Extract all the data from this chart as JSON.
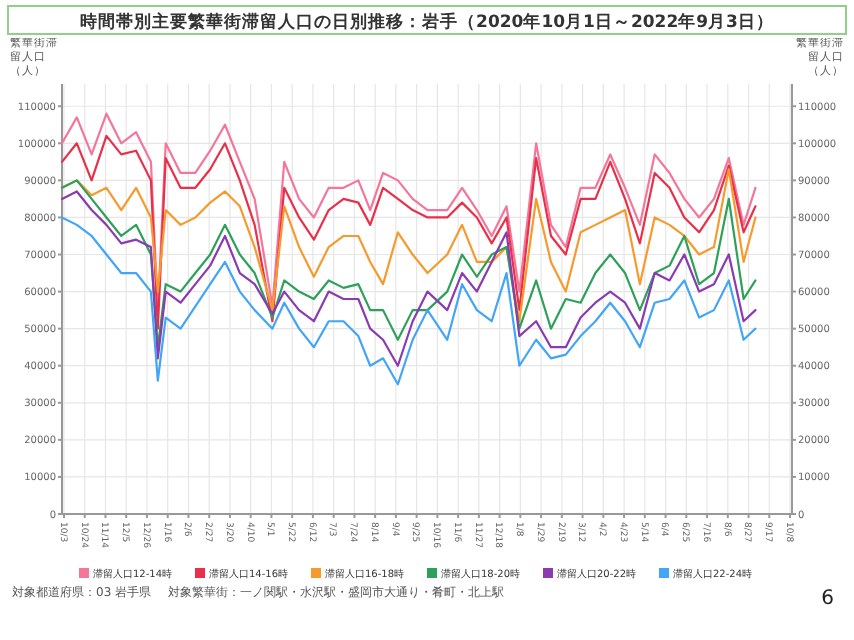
{
  "chart_data": {
    "type": "line",
    "title": "時間帯別主要繁華街滞留人口の日別推移：岩手（2020年10月1日～2022年9月3日）",
    "ylabel": "繁華街滞留人口（人）",
    "y2label": "繁華街滞留人口（人）",
    "x": [
      "2020-10-01",
      "2020-10-16",
      "2020-10-31",
      "2020-11-15",
      "2020-11-30",
      "2020-12-15",
      "2020-12-30",
      "2021-01-06",
      "2021-01-14",
      "2021-01-29",
      "2021-02-13",
      "2021-02-28",
      "2021-03-15",
      "2021-03-30",
      "2021-04-14",
      "2021-05-02",
      "2021-05-14",
      "2021-05-29",
      "2021-06-13",
      "2021-06-28",
      "2021-07-13",
      "2021-07-28",
      "2021-08-09",
      "2021-08-22",
      "2021-09-06",
      "2021-09-21",
      "2021-10-06",
      "2021-10-26",
      "2021-11-10",
      "2021-11-25",
      "2021-12-10",
      "2021-12-25",
      "2022-01-07",
      "2022-01-24",
      "2022-02-08",
      "2022-02-23",
      "2022-03-10",
      "2022-03-25",
      "2022-04-09",
      "2022-04-24",
      "2022-05-09",
      "2022-05-24",
      "2022-06-08",
      "2022-06-23",
      "2022-07-08",
      "2022-07-23",
      "2022-08-07",
      "2022-08-22",
      "2022-09-03"
    ],
    "series": [
      {
        "name": "滞留人口12-14時",
        "color": "#f4769a",
        "values": [
          100000,
          107000,
          97000,
          108000,
          100000,
          103000,
          95000,
          55000,
          100000,
          92000,
          92000,
          98000,
          105000,
          95000,
          85000,
          56000,
          95000,
          85000,
          80000,
          88000,
          88000,
          90000,
          82000,
          92000,
          90000,
          85000,
          82000,
          82000,
          88000,
          82000,
          75000,
          83000,
          60000,
          100000,
          78000,
          72000,
          88000,
          88000,
          97000,
          88000,
          78000,
          97000,
          92000,
          85000,
          80000,
          85000,
          96000,
          78000,
          88000
        ]
      },
      {
        "name": "滞留人口14-16時",
        "color": "#e8304a",
        "values": [
          95000,
          100000,
          90000,
          102000,
          97000,
          98000,
          90000,
          50000,
          96000,
          88000,
          88000,
          93000,
          100000,
          90000,
          78000,
          52000,
          88000,
          80000,
          74000,
          82000,
          85000,
          84000,
          78000,
          88000,
          85000,
          82000,
          80000,
          80000,
          84000,
          80000,
          73000,
          80000,
          55000,
          96000,
          75000,
          70000,
          85000,
          85000,
          95000,
          85000,
          73000,
          92000,
          88000,
          80000,
          76000,
          82000,
          94000,
          76000,
          83000
        ]
      },
      {
        "name": "滞留人口16-18時",
        "color": "#f79a2e",
        "values": [
          88000,
          90000,
          86000,
          88000,
          82000,
          88000,
          80000,
          60000,
          82000,
          78000,
          80000,
          84000,
          87000,
          83000,
          72000,
          55000,
          83000,
          72000,
          64000,
          72000,
          75000,
          75000,
          68000,
          62000,
          76000,
          70000,
          65000,
          70000,
          78000,
          68000,
          68000,
          72000,
          52000,
          85000,
          68000,
          60000,
          76000,
          78000,
          80000,
          82000,
          62000,
          80000,
          78000,
          75000,
          70000,
          72000,
          93000,
          68000,
          80000
        ]
      },
      {
        "name": "滞留人口18-20時",
        "color": "#2ea05a",
        "values": [
          88000,
          90000,
          85000,
          80000,
          75000,
          78000,
          70000,
          45000,
          62000,
          60000,
          65000,
          70000,
          78000,
          70000,
          65000,
          53000,
          63000,
          60000,
          58000,
          63000,
          61000,
          62000,
          55000,
          55000,
          47000,
          55000,
          55000,
          60000,
          70000,
          64000,
          70000,
          72000,
          50000,
          63000,
          50000,
          58000,
          57000,
          65000,
          70000,
          65000,
          55000,
          65000,
          67000,
          75000,
          62000,
          65000,
          85000,
          58000,
          63000
        ]
      },
      {
        "name": "滞留人口20-22時",
        "color": "#8a3bb0",
        "values": [
          85000,
          87000,
          82000,
          78000,
          73000,
          74000,
          72000,
          42000,
          60000,
          57000,
          62000,
          67000,
          75000,
          65000,
          62000,
          54000,
          60000,
          55000,
          52000,
          60000,
          58000,
          58000,
          50000,
          47000,
          40000,
          52000,
          60000,
          55000,
          65000,
          60000,
          68000,
          76000,
          48000,
          52000,
          45000,
          45000,
          53000,
          57000,
          60000,
          57000,
          50000,
          65000,
          63000,
          70000,
          60000,
          62000,
          70000,
          52000,
          55000
        ]
      },
      {
        "name": "滞留人口22-24時",
        "color": "#42a5f5",
        "values": [
          80000,
          78000,
          75000,
          70000,
          65000,
          65000,
          60000,
          36000,
          53000,
          50000,
          56000,
          62000,
          68000,
          60000,
          55000,
          50000,
          57000,
          50000,
          45000,
          52000,
          52000,
          48000,
          40000,
          42000,
          35000,
          47000,
          55000,
          47000,
          62000,
          55000,
          52000,
          65000,
          40000,
          47000,
          42000,
          43000,
          48000,
          52000,
          57000,
          52000,
          45000,
          57000,
          58000,
          63000,
          53000,
          55000,
          63000,
          47000,
          50000
        ]
      }
    ],
    "xlim": [
      "2020-10-01",
      "2022-10-10"
    ],
    "xticks": [
      {
        "value": "2020-10-03",
        "label": "10/3"
      },
      {
        "value": "2020-10-24",
        "label": "10/24"
      },
      {
        "value": "2020-11-14",
        "label": "11/14"
      },
      {
        "value": "2020-12-05",
        "label": "12/5"
      },
      {
        "value": "2020-12-26",
        "label": "12/26"
      },
      {
        "value": "2021-01-16",
        "label": "1/16"
      },
      {
        "value": "2021-02-06",
        "label": "2/6"
      },
      {
        "value": "2021-02-27",
        "label": "2/27"
      },
      {
        "value": "2021-03-20",
        "label": "3/20"
      },
      {
        "value": "2021-04-10",
        "label": "4/10"
      },
      {
        "value": "2021-05-01",
        "label": "5/1"
      },
      {
        "value": "2021-05-22",
        "label": "5/22"
      },
      {
        "value": "2021-06-12",
        "label": "6/12"
      },
      {
        "value": "2021-07-03",
        "label": "7/3"
      },
      {
        "value": "2021-07-24",
        "label": "7/24"
      },
      {
        "value": "2021-08-14",
        "label": "8/14"
      },
      {
        "value": "2021-09-04",
        "label": "9/4"
      },
      {
        "value": "2021-09-25",
        "label": "9/25"
      },
      {
        "value": "2021-10-16",
        "label": "10/16"
      },
      {
        "value": "2021-11-06",
        "label": "11/6"
      },
      {
        "value": "2021-11-27",
        "label": "11/27"
      },
      {
        "value": "2021-12-18",
        "label": "12/18"
      },
      {
        "value": "2022-01-08",
        "label": "1/8"
      },
      {
        "value": "2022-01-29",
        "label": "1/29"
      },
      {
        "value": "2022-02-19",
        "label": "2/19"
      },
      {
        "value": "2022-03-12",
        "label": "3/12"
      },
      {
        "value": "2022-04-02",
        "label": "4/2"
      },
      {
        "value": "2022-04-23",
        "label": "4/23"
      },
      {
        "value": "2022-05-14",
        "label": "5/14"
      },
      {
        "value": "2022-06-04",
        "label": "6/4"
      },
      {
        "value": "2022-06-25",
        "label": "6/25"
      },
      {
        "value": "2022-07-16",
        "label": "7/16"
      },
      {
        "value": "2022-08-06",
        "label": "8/6"
      },
      {
        "value": "2022-08-27",
        "label": "8/27"
      },
      {
        "value": "2022-09-17",
        "label": "9/17"
      },
      {
        "value": "2022-10-08",
        "label": "10/8"
      }
    ],
    "ylim": [
      0,
      116000
    ],
    "yticks": [
      0,
      10000,
      20000,
      30000,
      40000,
      50000,
      60000,
      70000,
      80000,
      90000,
      100000,
      110000
    ],
    "y2lim": [
      0,
      116000
    ],
    "y2ticks": [
      0,
      10000,
      20000,
      30000,
      40000,
      50000,
      60000,
      70000,
      80000,
      90000,
      100000,
      110000
    ],
    "grid": true,
    "legend": "bottom",
    "marker": "none",
    "line_style": "solid",
    "annotations": [
      "対象都道府県：03 岩手県",
      "対象繁華街：一ノ関駅・水沢駅・盛岡市大通り・肴町・北上駅",
      "6"
    ]
  }
}
